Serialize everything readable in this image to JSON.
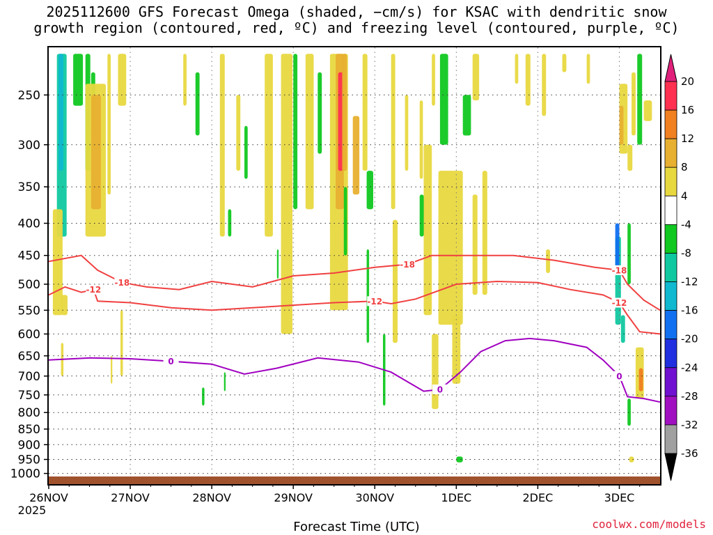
{
  "chart_data": {
    "type": "heatmap",
    "title_line1": "2025112600 GFS Forecast Omega (shaded, −cm/s) for KSAC with dendritic snow",
    "title_line2": "growth region (contoured, red, ºC) and freezing level (contoured, purple, ºC)",
    "xlabel": "Forecast Time (UTC)",
    "x_start_year": "2025",
    "x_ticks": [
      "26NOV",
      "27NOV",
      "28NOV",
      "29NOV",
      "30NOV",
      "1DEC",
      "2DEC",
      "3DEC"
    ],
    "y_scale": "log-pressure",
    "y_ticks": [
      250,
      300,
      350,
      400,
      450,
      500,
      550,
      600,
      650,
      700,
      750,
      800,
      850,
      900,
      950,
      1000
    ],
    "colorbar": {
      "labels": [
        20,
        16,
        12,
        8,
        4,
        -4,
        -8,
        -12,
        -16,
        -20,
        -24,
        -28,
        -32,
        -36
      ],
      "colors": [
        "#ff3050",
        "#f08020",
        "#e8b030",
        "#e8d840",
        "#ffffff",
        "#10c820",
        "#10c8a0",
        "#10b8d0",
        "#1070f0",
        "#2030e0",
        "#7010d0",
        "#a010c0",
        "#a0a0a0"
      ],
      "top_arrow_color": "#e0207a",
      "bottom_arrow_color": "#000000"
    },
    "contours": {
      "dgz_minus18": {
        "label": "-18",
        "color": "#f04040",
        "x": [
          0,
          0.4,
          0.6,
          0.9,
          1.2,
          1.6,
          2.0,
          2.5,
          3.0,
          3.5,
          4.0,
          4.4,
          4.7,
          5.0,
          5.3,
          5.7,
          6.2,
          6.7,
          7.0,
          7.1,
          7.3,
          7.5
        ],
        "p": [
          460,
          450,
          475,
          497,
          505,
          510,
          495,
          505,
          485,
          480,
          470,
          465,
          450,
          450,
          450,
          450,
          458,
          470,
          475,
          500,
          530,
          550
        ]
      },
      "dgz_minus12": {
        "label": "-12",
        "color": "#f04040",
        "x": [
          0,
          0.2,
          0.4,
          0.55,
          0.6,
          1.0,
          1.5,
          2.0,
          2.5,
          3.0,
          3.5,
          4.0,
          4.2,
          4.5,
          5.0,
          5.5,
          6.0,
          6.4,
          6.8,
          7.0,
          7.1,
          7.25,
          7.5
        ],
        "p": [
          520,
          505,
          515,
          510,
          532,
          535,
          545,
          550,
          545,
          540,
          535,
          532,
          537,
          528,
          500,
          495,
          497,
          510,
          520,
          535,
          560,
          595,
          600
        ]
      },
      "freezing_level": {
        "label": "0",
        "color": "#a000c0",
        "x": [
          0,
          0.5,
          1.0,
          1.5,
          2.0,
          2.4,
          2.8,
          3.3,
          3.8,
          4.2,
          4.6,
          4.8,
          5.05,
          5.3,
          5.6,
          5.9,
          6.2,
          6.6,
          6.8,
          7.0,
          7.1,
          7.3,
          7.5
        ],
        "p": [
          660,
          655,
          657,
          663,
          670,
          695,
          680,
          655,
          665,
          690,
          740,
          735,
          690,
          640,
          615,
          610,
          615,
          630,
          660,
          700,
          755,
          760,
          770
        ]
      }
    },
    "shading_note": "irregular vertical omega cells (positive = yellow/orange/red, negative = green/teal/blue)"
  },
  "credit": "coolwx.com/models"
}
